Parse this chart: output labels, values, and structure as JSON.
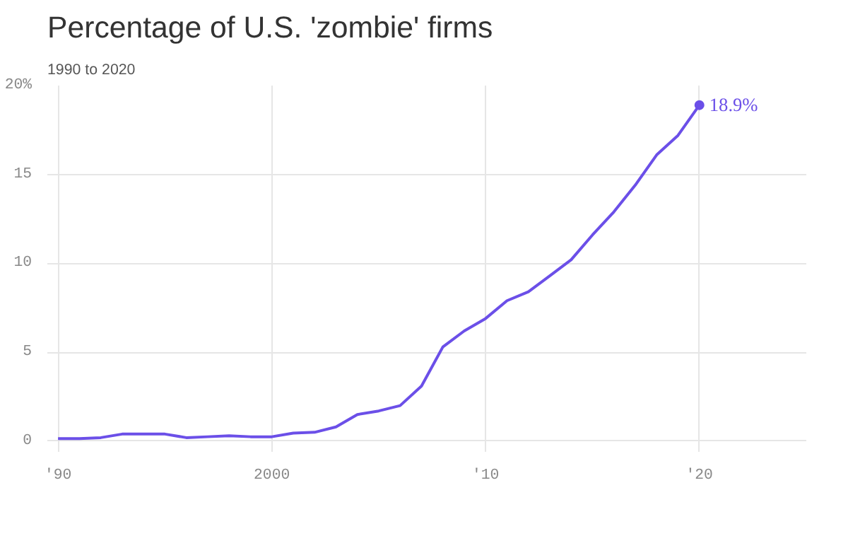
{
  "chart_data": {
    "type": "line",
    "title": "Percentage of U.S. 'zombie' firms",
    "subtitle": "1990 to 2020",
    "x": [
      1990,
      1991,
      1992,
      1993,
      1994,
      1995,
      1996,
      1997,
      1998,
      1999,
      2000,
      2001,
      2002,
      2003,
      2004,
      2005,
      2006,
      2007,
      2008,
      2009,
      2010,
      2011,
      2012,
      2013,
      2014,
      2015,
      2016,
      2017,
      2018,
      2019,
      2020
    ],
    "series": [
      {
        "color": "#6b4fe8",
        "values": [
          0.15,
          0.15,
          0.2,
          0.4,
          0.4,
          0.4,
          0.2,
          0.25,
          0.3,
          0.25,
          0.25,
          0.45,
          0.5,
          0.8,
          1.5,
          1.7,
          2.0,
          3.1,
          5.3,
          6.2,
          6.9,
          7.9,
          8.4,
          9.3,
          10.2,
          11.6,
          12.9,
          14.4,
          16.1,
          17.2,
          18.9
        ],
        "value_labels": [
          null,
          null,
          null,
          null,
          null,
          null,
          null,
          null,
          null,
          null,
          null,
          null,
          null,
          null,
          null,
          null,
          null,
          null,
          null,
          null,
          null,
          null,
          null,
          null,
          null,
          null,
          null,
          null,
          null,
          null,
          "18.9%"
        ]
      }
    ],
    "xlim": [
      1989.5,
      2025
    ],
    "xticks": [
      {
        "value": 1990,
        "label": "'90"
      },
      2000,
      {
        "value": 2010,
        "label": "'10"
      },
      {
        "value": 2020,
        "label": "'20"
      }
    ],
    "ylim": [
      -0.6,
      20
    ],
    "yticks": [
      0,
      5,
      10,
      15,
      {
        "value": 20,
        "label": "20%"
      }
    ],
    "grid": true
  }
}
